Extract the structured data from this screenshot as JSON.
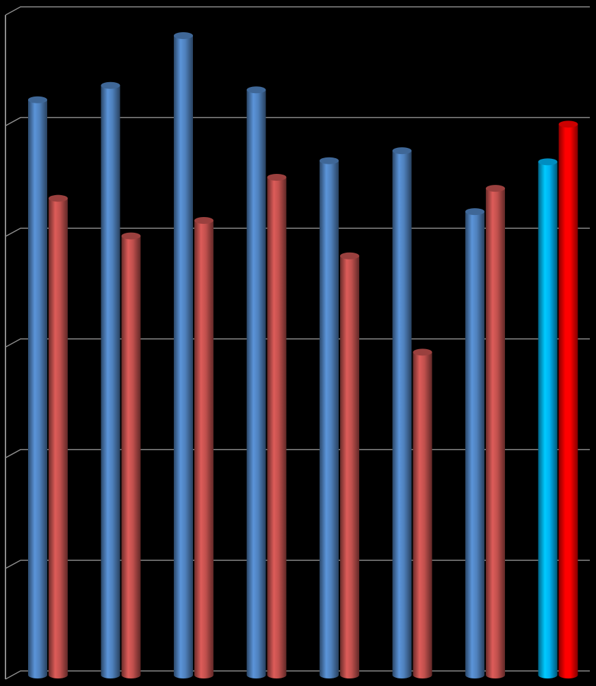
{
  "chart_data": {
    "type": "bar3d",
    "categories": [
      null,
      null,
      null,
      null,
      null,
      null,
      null,
      null
    ],
    "series": [
      {
        "color": "#4f81bd",
        "colors": [
          "#4f81bd",
          "#4f81bd",
          "#4f81bd",
          "#4f81bd",
          "#4f81bd",
          "#4f81bd",
          "#4f81bd",
          "#00b0f0"
        ],
        "values": [
          51.6,
          52.9,
          57.4,
          52.5,
          46.1,
          47.0,
          41.5,
          46.0
        ]
      },
      {
        "color": "#c0504d",
        "colors": [
          "#c0504d",
          "#c0504d",
          "#c0504d",
          "#c0504d",
          "#c0504d",
          "#c0504d",
          "#c0504d",
          "#ff0000"
        ],
        "values": [
          42.7,
          39.3,
          40.7,
          44.6,
          37.5,
          28.8,
          43.6,
          49.4
        ]
      }
    ],
    "ylim": [
      0,
      60
    ],
    "yticks": [
      0,
      10,
      20,
      30,
      40,
      50,
      60
    ],
    "grid": true
  }
}
